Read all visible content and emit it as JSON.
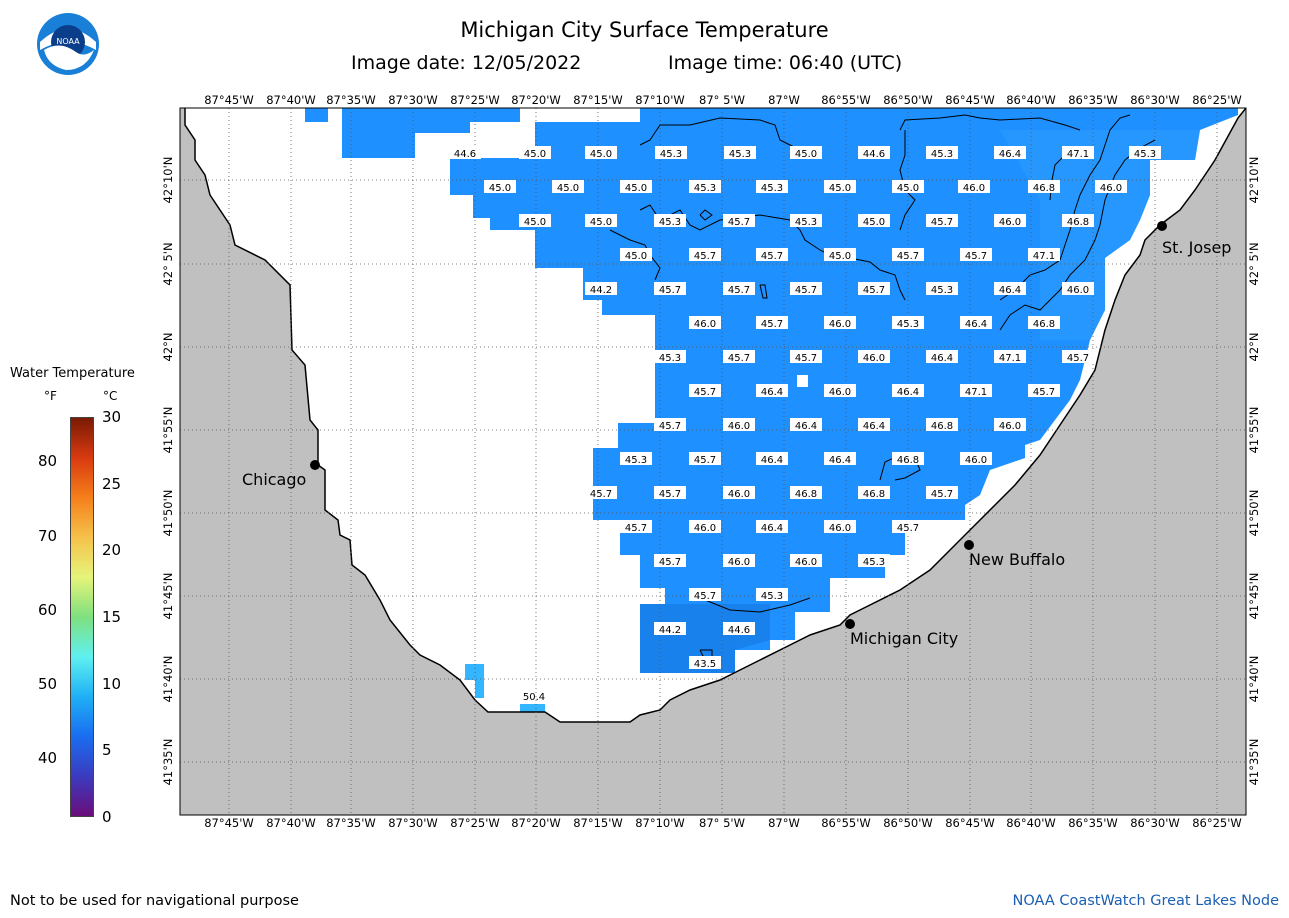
{
  "title": "Michigan City Surface Temperature",
  "image_date": "Image date: 12/05/2022",
  "image_time": "Image time: 06:40 (UTC)",
  "logo_text": "NOAA",
  "lon_labels": [
    "87°45'W",
    "87°40'W",
    "87°35'W",
    "87°30'W",
    "87°25'W",
    "87°20'W",
    "87°15'W",
    "87°10'W",
    "87° 5'W",
    "87°W",
    "86°55'W",
    "86°50'W",
    "86°45'W",
    "86°40'W",
    "86°35'W",
    "86°30'W",
    "86°25'W"
  ],
  "lat_labels": [
    "42°10'N",
    "42° 5'N",
    "42°N",
    "41°55'N",
    "41°50'N",
    "41°45'N",
    "41°40'N",
    "41°35'N"
  ],
  "legend": {
    "title": "Water Temperature",
    "f_header": "°F",
    "c_header": "°C",
    "f_ticks": [
      "80",
      "70",
      "60",
      "50",
      "40"
    ],
    "c_ticks": [
      "30",
      "25",
      "20",
      "15",
      "10",
      "5",
      "0"
    ]
  },
  "cities": [
    {
      "name": "Chicago"
    },
    {
      "name": "Michigan City"
    },
    {
      "name": "New Buffalo"
    },
    {
      "name": "St. Josep"
    }
  ],
  "colors": {
    "water": "#1e90ff",
    "water_light": "#33b5ff",
    "land": "#c0c0c0",
    "water_dark": "#1a7ee8"
  },
  "temperature_labels": {
    "row1": [
      "44.6",
      "45.0",
      "45.0",
      "45.3",
      "45.3",
      "45.0",
      "44.6",
      "45.3",
      "46.4",
      "47.1",
      "45.3"
    ],
    "row2": [
      "45.0",
      "45.0",
      "45.0",
      "45.3",
      "45.3",
      "45.0",
      "45.0",
      "46.0",
      "46.8",
      "46.0"
    ],
    "row3": [
      "45.0",
      "45.0",
      "45.3",
      "45.7",
      "45.3",
      "45.0",
      "45.7",
      "46.0",
      "46.8"
    ],
    "row4": [
      "45.0",
      "45.7",
      "45.7",
      "45.0",
      "45.7",
      "45.7",
      "47.1"
    ],
    "row5": [
      "44.2",
      "45.7",
      "45.7",
      "45.7",
      "45.7",
      "45.3",
      "46.4",
      "46.0"
    ],
    "row6": [
      "46.0",
      "45.7",
      "46.0",
      "45.3",
      "46.4",
      "46.8"
    ],
    "row7": [
      "45.3",
      "45.7",
      "45.7",
      "46.0",
      "46.4",
      "47.1",
      "45.7"
    ],
    "row8": [
      "45.7",
      "46.4",
      "46.0",
      "46.4",
      "47.1",
      "45.7"
    ],
    "row9": [
      "45.7",
      "46.0",
      "46.4",
      "46.4",
      "46.8",
      "46.0"
    ],
    "row10": [
      "45.3",
      "45.7",
      "46.4",
      "46.4",
      "46.8",
      "46.0"
    ],
    "row11": [
      "45.7",
      "45.7",
      "46.0",
      "46.8",
      "46.8",
      "45.7"
    ],
    "row12": [
      "45.7",
      "46.0",
      "46.4",
      "46.0",
      "45.7"
    ],
    "row13": [
      "45.7",
      "46.0",
      "46.0",
      "45.3"
    ],
    "row14": [
      "45.7",
      "45.3"
    ],
    "row15": [
      "44.2",
      "44.6"
    ],
    "row16": [
      "43.5"
    ],
    "row17": [
      "50.4"
    ]
  },
  "footer_left": "Not to be used for navigational purpose",
  "footer_right": "NOAA CoastWatch Great Lakes Node"
}
